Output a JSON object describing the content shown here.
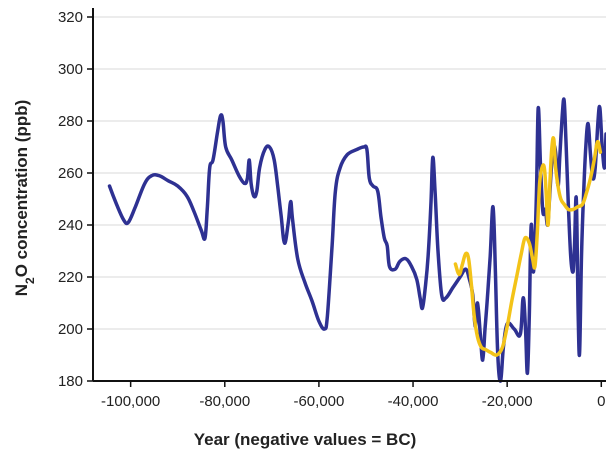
{
  "chart_data": {
    "type": "line",
    "xlabel": "Year (negative values = BC)",
    "ylabel_parts": {
      "before": "N",
      "sub": "2",
      "after": "O concentration (ppb)"
    },
    "xlim": [
      -108000,
      1000
    ],
    "ylim": [
      180,
      320
    ],
    "x_ticks": [
      {
        "value": -100000,
        "label": "-100,000"
      },
      {
        "value": -80000,
        "label": "-80,000"
      },
      {
        "value": -60000,
        "label": "-60,000"
      },
      {
        "value": -40000,
        "label": "-40,000"
      },
      {
        "value": -20000,
        "label": "-20,000"
      },
      {
        "value": 0,
        "label": "0"
      }
    ],
    "y_ticks": [
      {
        "value": 180,
        "label": "180"
      },
      {
        "value": 200,
        "label": "200"
      },
      {
        "value": 220,
        "label": "220"
      },
      {
        "value": 240,
        "label": "240"
      },
      {
        "value": 260,
        "label": "260"
      },
      {
        "value": 280,
        "label": "280"
      },
      {
        "value": 300,
        "label": "300"
      },
      {
        "value": 320,
        "label": "320"
      }
    ],
    "grid": "horizontal",
    "series": [
      {
        "color": "#2e3192",
        "points": [
          [
            -104500,
            255
          ],
          [
            -103000,
            248
          ],
          [
            -101500,
            242
          ],
          [
            -100500,
            241
          ],
          [
            -99000,
            247
          ],
          [
            -97000,
            256
          ],
          [
            -95500,
            259
          ],
          [
            -94000,
            259
          ],
          [
            -92000,
            257
          ],
          [
            -90000,
            255
          ],
          [
            -88000,
            251
          ],
          [
            -86500,
            245
          ],
          [
            -85000,
            238
          ],
          [
            -84200,
            235
          ],
          [
            -83700,
            247
          ],
          [
            -83200,
            262
          ],
          [
            -82500,
            265
          ],
          [
            -81600,
            275
          ],
          [
            -80900,
            282
          ],
          [
            -80400,
            280
          ],
          [
            -79800,
            270
          ],
          [
            -78500,
            265
          ],
          [
            -77000,
            259
          ],
          [
            -75800,
            256
          ],
          [
            -75200,
            258
          ],
          [
            -74800,
            265
          ],
          [
            -74400,
            256
          ],
          [
            -73800,
            251
          ],
          [
            -73200,
            253
          ],
          [
            -72600,
            262
          ],
          [
            -71500,
            269
          ],
          [
            -70500,
            270
          ],
          [
            -69500,
            265
          ],
          [
            -68700,
            254
          ],
          [
            -68000,
            243
          ],
          [
            -67300,
            233
          ],
          [
            -66500,
            241
          ],
          [
            -66000,
            249
          ],
          [
            -65600,
            242
          ],
          [
            -64500,
            227
          ],
          [
            -63000,
            218
          ],
          [
            -61500,
            211
          ],
          [
            -60000,
            203
          ],
          [
            -58800,
            200
          ],
          [
            -58200,
            205
          ],
          [
            -57200,
            232
          ],
          [
            -56500,
            253
          ],
          [
            -55500,
            262
          ],
          [
            -54000,
            267
          ],
          [
            -52000,
            269
          ],
          [
            -50500,
            270
          ],
          [
            -49800,
            269
          ],
          [
            -49300,
            258
          ],
          [
            -48500,
            255
          ],
          [
            -47500,
            253
          ],
          [
            -46800,
            243
          ],
          [
            -46100,
            235
          ],
          [
            -45500,
            232
          ],
          [
            -45000,
            224
          ],
          [
            -43800,
            223
          ],
          [
            -42800,
            226
          ],
          [
            -41500,
            227
          ],
          [
            -40300,
            224
          ],
          [
            -39200,
            219
          ],
          [
            -38500,
            212
          ],
          [
            -38000,
            208
          ],
          [
            -37400,
            216
          ],
          [
            -36800,
            228
          ],
          [
            -36200,
            248
          ],
          [
            -35800,
            266
          ],
          [
            -35300,
            252
          ],
          [
            -34700,
            230
          ],
          [
            -33900,
            213
          ],
          [
            -33000,
            212
          ],
          [
            -31500,
            216
          ],
          [
            -30000,
            220
          ],
          [
            -28800,
            223
          ],
          [
            -28000,
            219
          ],
          [
            -27300,
            213
          ],
          [
            -26800,
            201
          ],
          [
            -26300,
            210
          ],
          [
            -25700,
            198
          ],
          [
            -25200,
            188
          ],
          [
            -24700,
            200
          ],
          [
            -24200,
            212
          ],
          [
            -23600,
            228
          ],
          [
            -23000,
            247
          ],
          [
            -22500,
            222
          ],
          [
            -22000,
            190
          ],
          [
            -21400,
            180
          ],
          [
            -20800,
            193
          ],
          [
            -20000,
            202
          ],
          [
            -18500,
            200
          ],
          [
            -17200,
            198
          ],
          [
            -16600,
            212
          ],
          [
            -16100,
            200
          ],
          [
            -15700,
            183
          ],
          [
            -15300,
            205
          ],
          [
            -14900,
            240
          ],
          [
            -14400,
            222
          ],
          [
            -13800,
            250
          ],
          [
            -13400,
            285
          ],
          [
            -12900,
            262
          ],
          [
            -12400,
            245
          ],
          [
            -11900,
            246
          ],
          [
            -11400,
            240
          ],
          [
            -11000,
            250
          ],
          [
            -10600,
            262
          ],
          [
            -10200,
            270
          ],
          [
            -9700,
            268
          ],
          [
            -9200,
            255
          ],
          [
            -8800,
            267
          ],
          [
            -8300,
            282
          ],
          [
            -7900,
            288
          ],
          [
            -7500,
            272
          ],
          [
            -7000,
            248
          ],
          [
            -6500,
            228
          ],
          [
            -6000,
            222
          ],
          [
            -5700,
            232
          ],
          [
            -5300,
            250
          ],
          [
            -4900,
            205
          ],
          [
            -4600,
            191
          ],
          [
            -4200,
            228
          ],
          [
            -3800,
            250
          ],
          [
            -3300,
            270
          ],
          [
            -2800,
            279
          ],
          [
            -2300,
            267
          ],
          [
            -1800,
            258
          ],
          [
            -1300,
            262
          ],
          [
            -700,
            280
          ],
          [
            -300,
            285
          ],
          [
            200,
            270
          ],
          [
            700,
            262
          ],
          [
            1000,
            275
          ]
        ]
      },
      {
        "color": "#f3c318",
        "points": [
          [
            -31000,
            225
          ],
          [
            -30200,
            221
          ],
          [
            -29500,
            225
          ],
          [
            -28800,
            229
          ],
          [
            -28200,
            227
          ],
          [
            -27600,
            217
          ],
          [
            -27000,
            205
          ],
          [
            -26300,
            197
          ],
          [
            -25500,
            193
          ],
          [
            -24500,
            192
          ],
          [
            -23500,
            191
          ],
          [
            -22200,
            190
          ],
          [
            -21000,
            193
          ],
          [
            -20000,
            201
          ],
          [
            -19000,
            211
          ],
          [
            -18000,
            220
          ],
          [
            -17000,
            229
          ],
          [
            -16200,
            235
          ],
          [
            -15300,
            233
          ],
          [
            -14600,
            227
          ],
          [
            -14100,
            224
          ],
          [
            -13600,
            237
          ],
          [
            -13100,
            256
          ],
          [
            -12600,
            262
          ],
          [
            -12100,
            262
          ],
          [
            -11700,
            252
          ],
          [
            -11300,
            240
          ],
          [
            -10900,
            257
          ],
          [
            -10500,
            270
          ],
          [
            -10100,
            273
          ],
          [
            -9700,
            262
          ],
          [
            -9200,
            255
          ],
          [
            -8600,
            250
          ],
          [
            -7900,
            248
          ],
          [
            -7000,
            246
          ],
          [
            -6000,
            246
          ],
          [
            -5000,
            247
          ],
          [
            -4000,
            248
          ],
          [
            -3200,
            252
          ],
          [
            -2300,
            258
          ],
          [
            -1500,
            265
          ],
          [
            -800,
            272
          ],
          [
            -200,
            268
          ]
        ]
      }
    ]
  }
}
